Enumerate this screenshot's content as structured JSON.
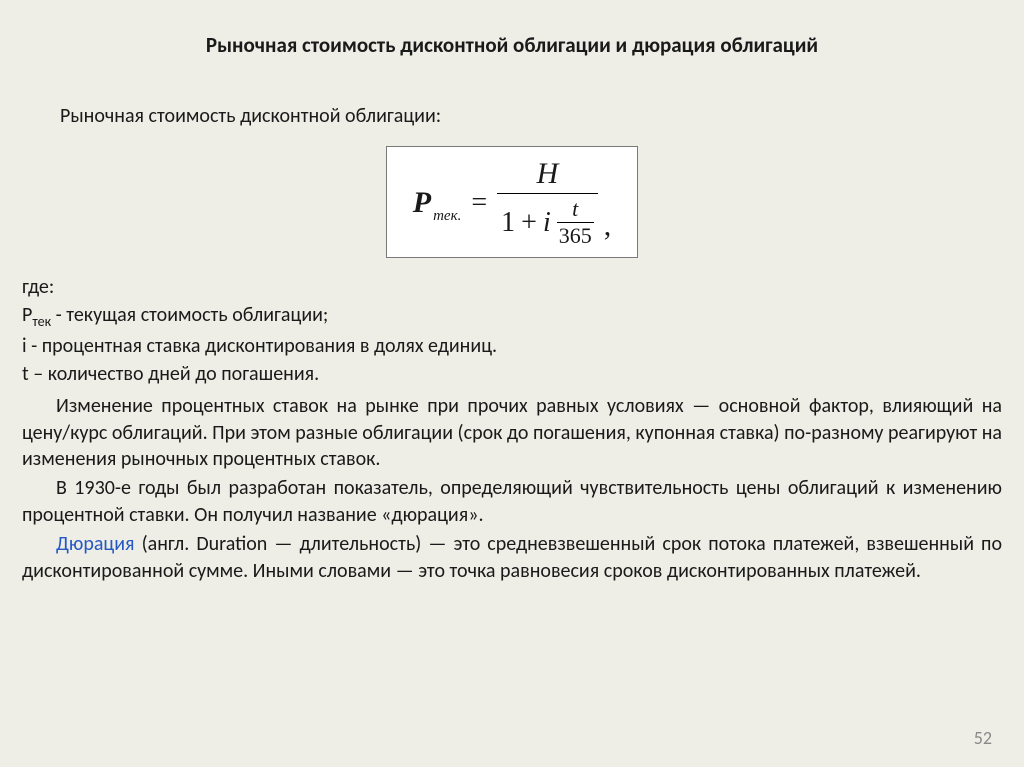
{
  "title": "Рыночная стоимость дисконтной облигации и дюрация облигаций",
  "subtitle": "Рыночная стоимость дисконтной облигации:",
  "formula": {
    "P": "P",
    "Psub": "тек.",
    "eq": "=",
    "H": "H",
    "one": "1",
    "plus": "+",
    "i": "i",
    "t": "t",
    "d365": "365",
    "comma": ","
  },
  "defs": {
    "where": "где:",
    "l1a": "P",
    "l1sub": "тек",
    "l1b": " - текущая стоимость облигации;",
    "l2": "i  -  процентная ставка дисконтирования в долях единиц.",
    "l3": "t – количество дней до погашения."
  },
  "para1": "Изменение процентных ставок на рынке при прочих равных условиях — основной фактор, влияющий на цену/курс облигаций. При этом разные облигации (срок до погашения, купонная ставка) по-разному реагируют на изменения рыночных процентных ставок.",
  "para2": "В 1930-е годы был разработан показатель, определяющий чувствительность цены облигаций к изменению процентной ставки. Он получил название «дюрация».",
  "para3_link": "Дюрация",
  "para3_rest": " (англ. Duration — длительность) — это средневзвешенный срок потока платежей, взвешенный по дисконтированной сумме. Иными словами — это точка равновесия сроков дисконтированных платежей.",
  "pagenum": "52",
  "colors": {
    "bg": "#eeeee6",
    "text": "#1a1a1a",
    "link": "#2458c5",
    "formula_bg": "#ffffff",
    "formula_border": "#7a7a7a",
    "pagenum": "#888888"
  }
}
